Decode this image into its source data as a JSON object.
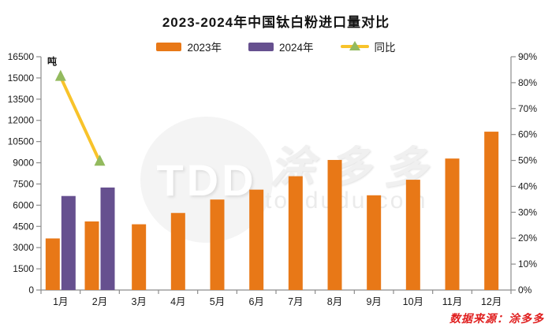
{
  "title": "2023-2024年中国钛白粉进口量对比",
  "source_note": "数据来源：涂多多",
  "watermark": {
    "logo": "TDD",
    "brand": "涂多多",
    "domain": "toodudu.com"
  },
  "legend": [
    {
      "label": "2023年",
      "type": "bar",
      "color": "#E87817"
    },
    {
      "label": "2024年",
      "type": "bar",
      "color": "#66508F"
    },
    {
      "label": "同比",
      "type": "line",
      "color": "#F8C32A",
      "marker_color": "#93BA5E"
    }
  ],
  "colors": {
    "bar_2023": "#E87817",
    "bar_2024": "#66508F",
    "yoy_line": "#F8C32A",
    "yoy_marker": "#93BA5E",
    "axis_line": "#8C8C8C",
    "tick_label": "#1A1A1A",
    "source_text": "#E01F1F"
  },
  "chart_data": {
    "type": "bar",
    "subtype": "grouped-bar-plus-line-dual-axis",
    "title": "2023-2024年中国钛白粉进口量对比",
    "categories": [
      "1月",
      "2月",
      "3月",
      "4月",
      "5月",
      "6月",
      "7月",
      "8月",
      "9月",
      "10月",
      "11月",
      "12月"
    ],
    "series": [
      {
        "name": "2023年",
        "type": "bar",
        "axis": "left",
        "color": "#E87817",
        "values": [
          3650,
          4850,
          4650,
          5450,
          6400,
          7100,
          8050,
          9200,
          6700,
          7800,
          9300,
          11200
        ]
      },
      {
        "name": "2024年",
        "type": "bar",
        "axis": "left",
        "color": "#66508F",
        "values": [
          6650,
          7250,
          null,
          null,
          null,
          null,
          null,
          null,
          null,
          null,
          null,
          null
        ]
      },
      {
        "name": "同比",
        "type": "line",
        "axis": "right",
        "color": "#F8C32A",
        "marker": "triangle",
        "marker_color": "#93BA5E",
        "values": [
          82.2,
          49.5,
          null,
          null,
          null,
          null,
          null,
          null,
          null,
          null,
          null,
          null
        ]
      }
    ],
    "left_axis": {
      "label": "吨",
      "min": 0,
      "max": 16500,
      "step": 1500
    },
    "right_axis": {
      "min": 0,
      "max": 90,
      "step": 10,
      "suffix": "%"
    },
    "grid": false,
    "legend_position": "top"
  }
}
